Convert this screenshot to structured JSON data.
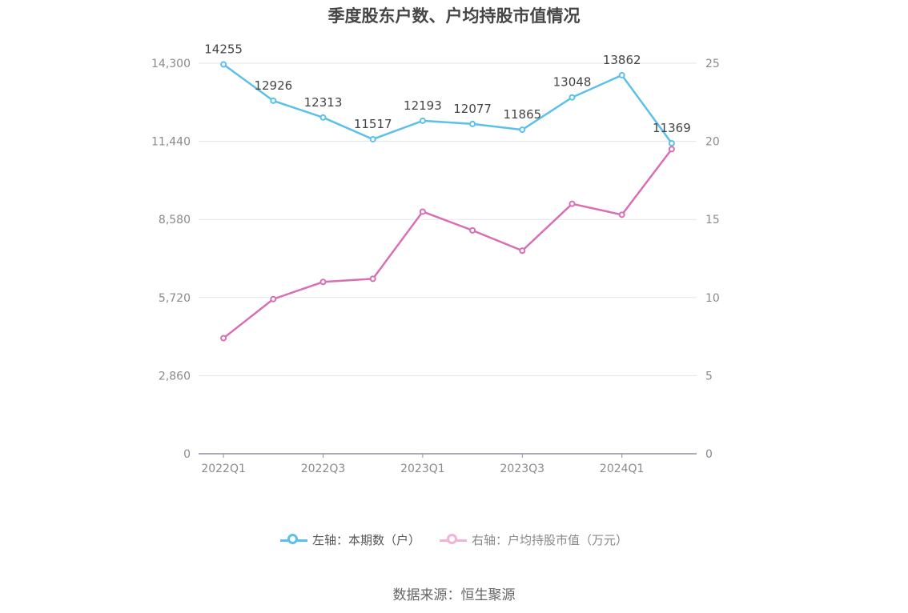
{
  "chart_data": {
    "type": "line",
    "title": "季度股东户数、户均持股市值情况",
    "categories": [
      "2022Q1",
      "2022Q2",
      "2022Q3",
      "2022Q4",
      "2023Q1",
      "2023Q2",
      "2023Q3",
      "2023Q4",
      "2024Q1",
      "2024Q2"
    ],
    "x_tick_labels": [
      "2022Q1",
      "2022Q3",
      "2023Q1",
      "2023Q3",
      "2024Q1"
    ],
    "series": [
      {
        "name": "左轴：本期数（户）",
        "axis": "left",
        "color": "#5bc0eb",
        "values": [
          14255,
          12926,
          12313,
          11517,
          12193,
          12077,
          11865,
          13048,
          13862,
          11369
        ],
        "data_labels": [
          "14255",
          "12926",
          "12313",
          "11517",
          "12193",
          "12077",
          "11865",
          "13048",
          "13862",
          "11369"
        ]
      },
      {
        "name": "右轴：户均持股市值（万元）",
        "axis": "right",
        "color": "#d86fb5",
        "values": [
          7.4,
          9.9,
          11.0,
          11.2,
          15.5,
          14.3,
          13.0,
          16.0,
          15.3,
          19.5
        ]
      }
    ],
    "y_left": {
      "min": 0,
      "max": 14300,
      "ticks": [
        0,
        2860,
        5720,
        8580,
        11440,
        14300
      ],
      "tick_labels": [
        "0",
        "2,860",
        "5,720",
        "8,580",
        "11,440",
        "14,300"
      ]
    },
    "y_right": {
      "min": 0,
      "max": 25,
      "ticks": [
        0,
        5,
        10,
        15,
        20,
        25
      ],
      "tick_labels": [
        "0",
        "5",
        "10",
        "15",
        "20",
        "25"
      ]
    },
    "grid": true,
    "legend_position": "bottom"
  },
  "source": "数据来源：恒生聚源"
}
